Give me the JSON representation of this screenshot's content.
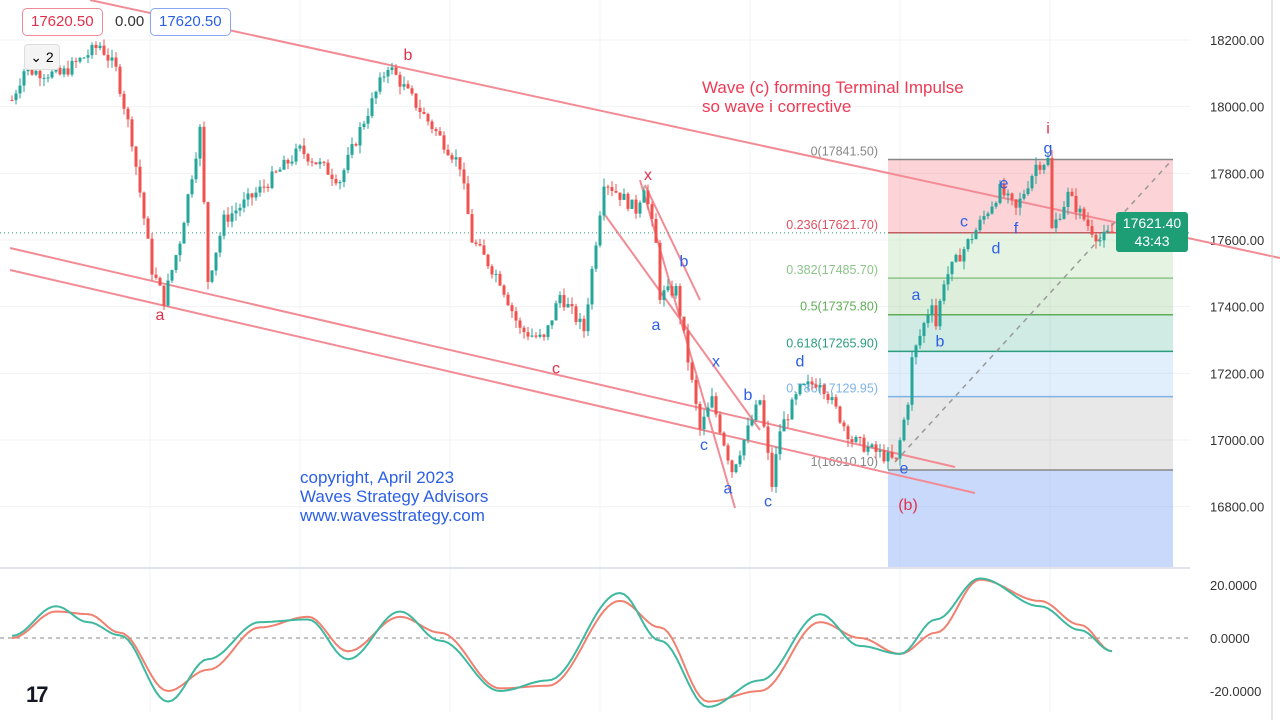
{
  "legend": {
    "price_red": "17620.50",
    "change": "0.00",
    "price_blue": "17620.50",
    "collapse_count": "2"
  },
  "price_tag": {
    "price": "17621.40",
    "countdown": "43:43"
  },
  "annotation": [
    "Wave (c) forming Terminal Impulse",
    "so wave i corrective"
  ],
  "copyright": [
    "copyright, April 2023",
    "Waves Strategy Advisors",
    "www.wavesstrategy.com"
  ],
  "colors": {
    "up": "#26a69a",
    "down": "#ef5350",
    "trendline": "#f28b94",
    "wave_red": "#e0304a",
    "wave_blue": "#2b5fe6",
    "osc_fast": "#3fb8a0",
    "osc_slow": "#f08070"
  },
  "chart_data": [
    {
      "type": "candlestick",
      "ylim": [
        16700,
        18250
      ],
      "yticks": [
        18200,
        18000,
        17800,
        17600,
        17400,
        17200,
        17000,
        16800
      ],
      "ytick_labels": [
        "18200.00",
        "18000.00",
        "17800.00",
        "17600.00",
        "17400.00",
        "17200.00",
        "17000.00",
        "16800.00"
      ],
      "swings": [
        [
          0,
          18020
        ],
        [
          3,
          18110
        ],
        [
          12,
          18095
        ],
        [
          22,
          18185
        ],
        [
          26,
          18110
        ],
        [
          30,
          17900
        ],
        [
          35,
          17510
        ],
        [
          38,
          17420
        ],
        [
          42,
          17600
        ],
        [
          47,
          17930
        ],
        [
          49,
          17480
        ],
        [
          53,
          17660
        ],
        [
          62,
          17750
        ],
        [
          72,
          17870
        ],
        [
          82,
          17780
        ],
        [
          87,
          17930
        ],
        [
          94,
          18125
        ],
        [
          102,
          17990
        ],
        [
          112,
          17825
        ],
        [
          115,
          17600
        ],
        [
          122,
          17480
        ],
        [
          127,
          17330
        ],
        [
          133,
          17300
        ],
        [
          137,
          17435
        ],
        [
          143,
          17330
        ],
        [
          145,
          17510
        ],
        [
          148,
          17780
        ],
        [
          156,
          17690
        ],
        [
          158,
          17765
        ],
        [
          161,
          17585
        ],
        [
          162,
          17435
        ],
        [
          166,
          17450
        ],
        [
          172,
          17030
        ],
        [
          175,
          17120
        ],
        [
          180,
          16910
        ],
        [
          185,
          17060
        ],
        [
          187,
          17120
        ],
        [
          190,
          16865
        ],
        [
          192,
          17030
        ],
        [
          197,
          17150
        ],
        [
          202,
          17180
        ],
        [
          210,
          17000
        ],
        [
          221,
          16934
        ],
        [
          224,
          17120
        ],
        [
          225,
          17240
        ],
        [
          230,
          17420
        ],
        [
          231,
          17345
        ],
        [
          233,
          17480
        ],
        [
          241,
          17630
        ],
        [
          244,
          17690
        ],
        [
          247,
          17750
        ],
        [
          251,
          17690
        ],
        [
          256,
          17825
        ],
        [
          259,
          17840
        ],
        [
          260,
          17630
        ],
        [
          264,
          17735
        ],
        [
          269,
          17645
        ],
        [
          272,
          17600
        ],
        [
          275,
          17621
        ]
      ],
      "fibonacci": {
        "levels": [
          {
            "ratio": "0",
            "price": 17841.5,
            "label": "0(17841.50)",
            "color": "#888888"
          },
          {
            "ratio": "0.236",
            "price": 17621.7,
            "label": "0.236(17621.70)",
            "color": "#e05060"
          },
          {
            "ratio": "0.382",
            "price": 17485.7,
            "label": "0.382(17485.70)",
            "color": "#8cc58a"
          },
          {
            "ratio": "0.5",
            "price": 17375.8,
            "label": "0.5(17375.80)",
            "color": "#5fae55"
          },
          {
            "ratio": "0.618",
            "price": 17265.9,
            "label": "0.618(17265.90)",
            "color": "#2a9d7f"
          },
          {
            "ratio": "0.786",
            "price": 17129.95,
            "label": "0.786(17129.95)",
            "color": "#7fb3e6"
          },
          {
            "ratio": "1",
            "price": 16910.1,
            "label": "1(16910.10)",
            "color": "#888888"
          }
        ]
      },
      "wave_labels": [
        {
          "text": "b",
          "bar": 99,
          "price": 18140,
          "color": "red"
        },
        {
          "text": "a",
          "bar": 37,
          "price": 17360,
          "color": "red"
        },
        {
          "text": "c",
          "bar": 136,
          "price": 17200,
          "color": "red"
        },
        {
          "text": "x",
          "bar": 159,
          "price": 17780,
          "color": "red"
        },
        {
          "text": "i",
          "bar": 259,
          "price": 17920,
          "color": "red"
        },
        {
          "text": "(b)",
          "bar": 224,
          "price": 16790,
          "color": "red"
        },
        {
          "text": "b",
          "bar": 168,
          "price": 17520,
          "color": "blue"
        },
        {
          "text": "a",
          "bar": 161,
          "price": 17330,
          "color": "blue"
        },
        {
          "text": "x",
          "bar": 176,
          "price": 17220,
          "color": "blue"
        },
        {
          "text": "c",
          "bar": 173,
          "price": 16970,
          "color": "blue"
        },
        {
          "text": "a",
          "bar": 179,
          "price": 16840,
          "color": "blue"
        },
        {
          "text": "b",
          "bar": 184,
          "price": 17120,
          "color": "blue"
        },
        {
          "text": "c",
          "bar": 189,
          "price": 16800,
          "color": "blue"
        },
        {
          "text": "d",
          "bar": 197,
          "price": 17220,
          "color": "blue"
        },
        {
          "text": "e",
          "bar": 223,
          "price": 16900,
          "color": "blue"
        },
        {
          "text": "a",
          "bar": 226,
          "price": 17420,
          "color": "blue"
        },
        {
          "text": "b",
          "bar": 232,
          "price": 17280,
          "color": "blue"
        },
        {
          "text": "c",
          "bar": 238,
          "price": 17640,
          "color": "blue"
        },
        {
          "text": "d",
          "bar": 246,
          "price": 17560,
          "color": "blue"
        },
        {
          "text": "e",
          "bar": 248,
          "price": 17755,
          "color": "blue"
        },
        {
          "text": "f",
          "bar": 251,
          "price": 17620,
          "color": "blue"
        },
        {
          "text": "g",
          "bar": 259,
          "price": 17860,
          "color": "blue"
        }
      ]
    },
    {
      "type": "line",
      "ylim": [
        -28,
        26
      ],
      "yticks": [
        20,
        0,
        -20
      ],
      "ytick_labels": [
        "20.0000",
        "0.0000",
        "-20.0000"
      ],
      "x": [
        0,
        11,
        19,
        27,
        39,
        49,
        62,
        74,
        84,
        97,
        107,
        122,
        134,
        152,
        162,
        174,
        187,
        202,
        212,
        222,
        231,
        242,
        257,
        267,
        275
      ],
      "series": [
        {
          "values": [
            0.8,
            12,
            6,
            1,
            -24,
            -8,
            6,
            7,
            -8,
            10,
            -1,
            -20,
            -16,
            17,
            -1,
            -26,
            -16,
            9,
            -3,
            -6,
            7,
            22.5,
            12,
            3,
            -5
          ]
        },
        {
          "values": [
            0,
            10,
            9,
            2,
            -20,
            -12,
            4,
            8,
            -5,
            8,
            2,
            -19,
            -18,
            14,
            4,
            -24,
            -20,
            6,
            0,
            -6,
            2,
            22,
            14,
            5,
            -5
          ]
        }
      ]
    }
  ]
}
